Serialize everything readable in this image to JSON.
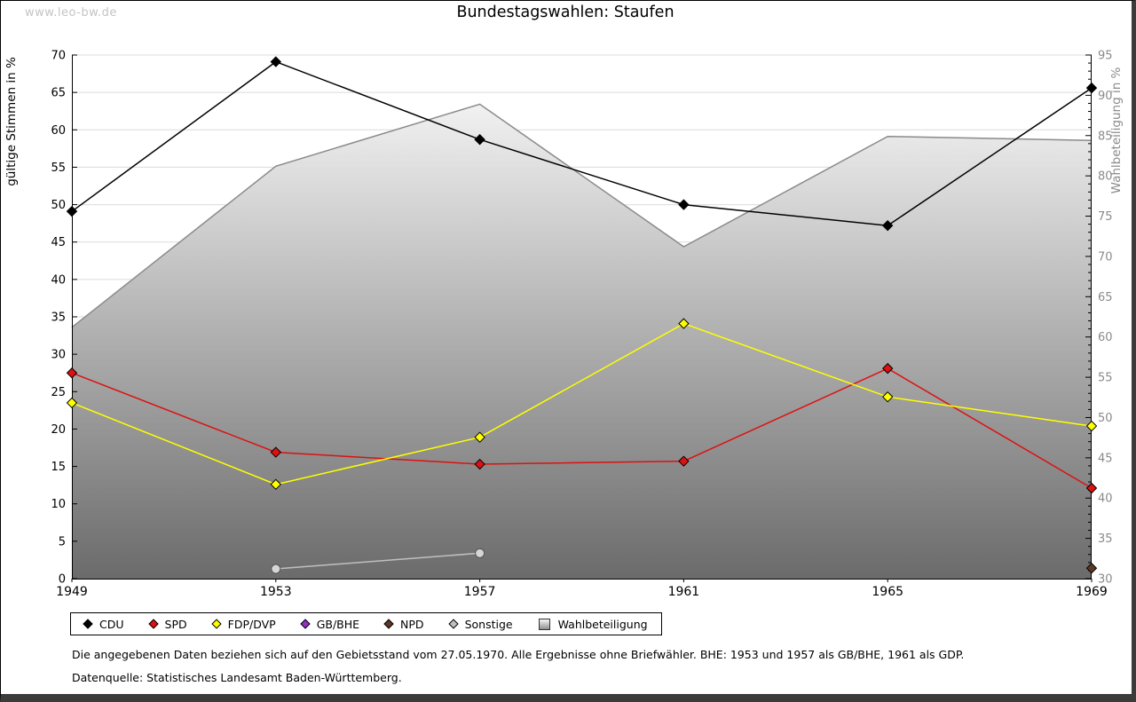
{
  "watermark": "www.leo-bw.de",
  "title": "Bundestagswahlen: Staufen",
  "footnotes": {
    "note": "Die angegebenen Daten beziehen sich auf den Gebietsstand vom 27.05.1970. Alle Ergebnisse ohne Briefwähler. BHE: 1953 und 1957 als GB/BHE, 1961 als GDP.",
    "source": "Datenquelle: Statistisches Landesamt Baden-Württemberg."
  },
  "chart_data": {
    "type": "line",
    "title": "Bundestagswahlen: Staufen",
    "x": [
      1949,
      1953,
      1957,
      1961,
      1965,
      1969
    ],
    "left_axis": {
      "label": "gültige Stimmen in %",
      "min": 0,
      "max": 70,
      "tick_step": 5,
      "tick_color": "#000000"
    },
    "right_axis": {
      "label": "Wahlbeteiligung in %",
      "min": 30,
      "max": 95,
      "tick_step": 5,
      "minor_step": 1,
      "tick_color": "#8a8a8a"
    },
    "grid": {
      "show": true,
      "color": "#dcdcdc"
    },
    "legend_position": "bottom",
    "series": [
      {
        "name": "CDU",
        "color": "#000000",
        "marker": "diamond",
        "axis": "left",
        "points": [
          [
            1949,
            49.1
          ],
          [
            1953,
            69.1
          ],
          [
            1957,
            58.7
          ],
          [
            1961,
            50.0
          ],
          [
            1965,
            47.2
          ],
          [
            1969,
            65.6
          ]
        ]
      },
      {
        "name": "SPD",
        "color": "#dd1111",
        "marker": "diamond",
        "axis": "left",
        "points": [
          [
            1949,
            27.5
          ],
          [
            1953,
            16.9
          ],
          [
            1957,
            15.3
          ],
          [
            1961,
            15.7
          ],
          [
            1965,
            28.1
          ],
          [
            1969,
            12.1
          ]
        ]
      },
      {
        "name": "FDP/DVP",
        "color": "#ffff00",
        "marker": "diamond",
        "axis": "left",
        "points": [
          [
            1949,
            23.5
          ],
          [
            1953,
            12.6
          ],
          [
            1957,
            18.9
          ],
          [
            1961,
            34.1
          ],
          [
            1965,
            24.3
          ],
          [
            1969,
            20.4
          ]
        ]
      },
      {
        "name": "GB/BHE",
        "color": "#9232c8",
        "marker": "diamond",
        "axis": "left",
        "points": []
      },
      {
        "name": "NPD",
        "color": "#5d3826",
        "marker": "diamond",
        "axis": "left",
        "points": [
          [
            1969,
            1.4
          ]
        ]
      },
      {
        "name": "Sonstige",
        "color": "#c0c0c0",
        "marker": "circle",
        "marker_fill": "#d6d6d6",
        "marker_stroke": "#555555",
        "axis": "left",
        "points": [
          [
            1953,
            1.3
          ],
          [
            1957,
            3.4
          ]
        ]
      },
      {
        "name": "Wahlbeteiligung",
        "type": "area",
        "axis": "right",
        "stroke": "#8a8a8a",
        "fill_top": "#ffffff",
        "fill_bottom": "#6b6b6b",
        "points": [
          [
            1949,
            61.2
          ],
          [
            1953,
            81.2
          ],
          [
            1957,
            88.9
          ],
          [
            1961,
            71.2
          ],
          [
            1965,
            84.9
          ],
          [
            1969,
            84.4
          ]
        ]
      }
    ]
  }
}
